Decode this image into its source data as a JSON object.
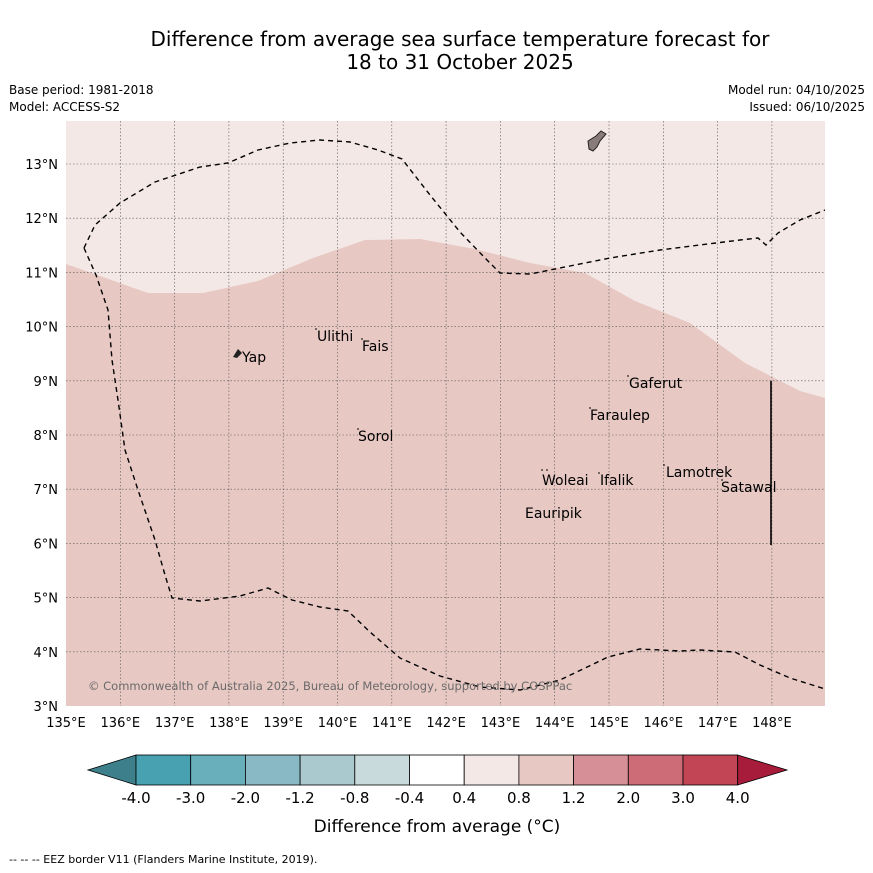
{
  "header": {
    "title_line1": "Difference from average sea surface temperature forecast for",
    "title_line2": "18 to 31 October 2025",
    "base_period": "Base period: 1981-2018",
    "model": "Model: ACCESS-S2",
    "model_run": "Model run: 04/10/2025",
    "issued": "Issued: 06/10/2025"
  },
  "map": {
    "lon_range": [
      135,
      149
    ],
    "lat_range": [
      3,
      13.75
    ],
    "lon_ticks": [
      "135°E",
      "136°E",
      "137°E",
      "138°E",
      "139°E",
      "140°E",
      "141°E",
      "142°E",
      "143°E",
      "144°E",
      "145°E",
      "146°E",
      "147°E",
      "148°E"
    ],
    "lat_ticks": [
      "3°N",
      "4°N",
      "5°N",
      "6°N",
      "7°N",
      "8°N",
      "9°N",
      "10°N",
      "11°N",
      "12°N",
      "13°N"
    ],
    "anomaly_zones": [
      {
        "range": "0.4 to 0.8",
        "color": "#f4e8e6"
      },
      {
        "range": "0.8 to 1.2",
        "color": "#e7c8c3"
      }
    ],
    "places": [
      "Yap",
      "Ulithi",
      "Fais",
      "Gaferut",
      "Faraulep",
      "Sorol",
      "Woleai",
      "Ifalik",
      "Lamotrek",
      "Satawal",
      "Eauripik"
    ],
    "copyright": "© Commonwealth of Australia 2025, Bureau of Meteorology, supported by COSPPac"
  },
  "legend": {
    "labels": [
      "-4.0",
      "-3.0",
      "-2.0",
      "-1.2",
      "-0.8",
      "-0.4",
      "0.4",
      "0.8",
      "1.2",
      "2.0",
      "3.0",
      "4.0"
    ],
    "colors": [
      "#3d7f8b",
      "#47a1b1",
      "#68aebb",
      "#88b9c4",
      "#a9c9cf",
      "#c9dadd",
      "#ffffff",
      "#f4e8e6",
      "#e7c8c3",
      "#d68f96",
      "#cd6c76",
      "#c14555",
      "#a81c3b"
    ],
    "title": "Difference from average (°C)"
  },
  "footnote": "--  --  -- EEZ border V11 (Flanders Marine Institute, 2019)."
}
